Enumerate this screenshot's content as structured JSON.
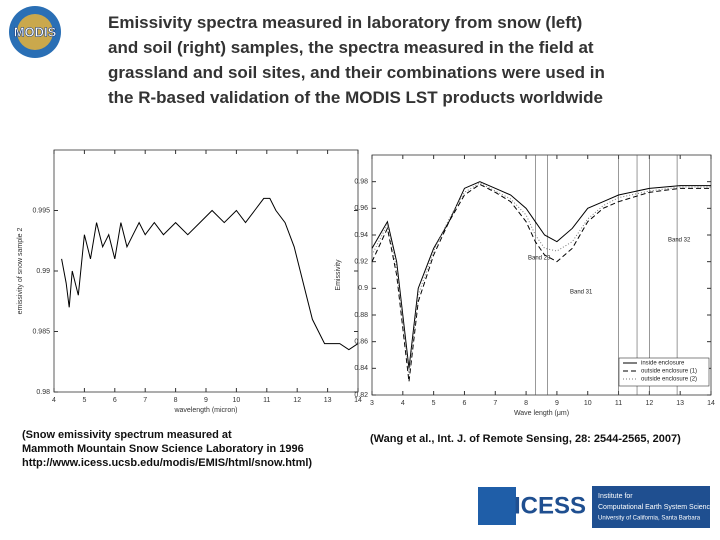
{
  "title_lines": [
    "Emissivity spectra measured in laboratory from snow (left)",
    "and soil (right) samples, the spectra measured in the field at",
    "grassland and soil sites, and their combinations were used in",
    "the R-based validation of the MODIS LST products worldwide"
  ],
  "captions": {
    "left": [
      "(Snow emissivity spectrum measured at",
      "Mammoth Mountain Snow Science Laboratory in 1996",
      "http://www.icess.ucsb.edu/modis/EMIS/html/snow.html)"
    ],
    "right": "(Wang et al., Int. J. of Remote Sensing, 28: 2544-2565, 2007)"
  },
  "logos": {
    "modis": "MODIS",
    "icess": "ICESS",
    "institute": [
      "Institute for",
      "Computational Earth System Science",
      "University of California, Santa Barbara"
    ]
  },
  "chart_data": [
    {
      "type": "line",
      "x_label": "wavelength (micron)",
      "y_label": "emissivity of snow sample 2",
      "x": [
        4.25,
        4.4,
        4.5,
        4.6,
        4.8,
        5.0,
        5.2,
        5.4,
        5.6,
        5.8,
        6.0,
        6.2,
        6.4,
        6.6,
        6.8,
        7.0,
        7.3,
        7.6,
        8.0,
        8.4,
        8.8,
        9.2,
        9.6,
        10.0,
        10.3,
        10.6,
        10.9,
        11.1,
        11.3,
        11.6,
        11.9,
        12.1,
        12.3,
        12.5,
        12.7,
        12.9,
        13.1,
        13.4,
        13.7,
        14.0
      ],
      "series": [
        {
          "name": null,
          "color": "#000000",
          "values": [
            0.991,
            0.989,
            0.987,
            0.99,
            0.988,
            0.993,
            0.991,
            0.994,
            0.992,
            0.993,
            0.991,
            0.994,
            0.992,
            0.993,
            0.994,
            0.993,
            0.994,
            0.993,
            0.994,
            0.993,
            0.994,
            0.995,
            0.994,
            0.995,
            0.994,
            0.995,
            0.996,
            0.996,
            0.995,
            0.994,
            0.992,
            0.99,
            0.988,
            0.986,
            0.985,
            0.984,
            0.984,
            0.984,
            0.9835,
            0.984
          ]
        }
      ],
      "xlim": [
        4,
        14
      ],
      "xticks": [
        4,
        5,
        6,
        7,
        8,
        9,
        10,
        11,
        12,
        13,
        14
      ],
      "ylim": [
        0.98,
        1.0
      ],
      "yticks": [
        0.98,
        0.985,
        0.99,
        0.995
      ]
    },
    {
      "type": "line",
      "x_label": "Wave length (μm)",
      "y_label": "Emissivity",
      "x": [
        3,
        3.5,
        3.8,
        4.0,
        4.2,
        4.5,
        5.0,
        5.5,
        6.0,
        6.5,
        7.0,
        7.5,
        8.0,
        8.3,
        8.6,
        9.0,
        9.5,
        10.0,
        10.5,
        11.0,
        12.0,
        13.0,
        14.0
      ],
      "series": [
        {
          "name": "inside   enclosure",
          "color": "#000000",
          "dash": "",
          "values": [
            0.93,
            0.95,
            0.92,
            0.88,
            0.84,
            0.9,
            0.93,
            0.95,
            0.975,
            0.98,
            0.975,
            0.97,
            0.96,
            0.95,
            0.94,
            0.935,
            0.945,
            0.96,
            0.965,
            0.97,
            0.975,
            0.977,
            0.977
          ]
        },
        {
          "name": "outside enclosure (1)",
          "color": "#000000",
          "dash": "5,3",
          "values": [
            0.92,
            0.945,
            0.91,
            0.87,
            0.83,
            0.89,
            0.925,
            0.95,
            0.97,
            0.978,
            0.972,
            0.965,
            0.95,
            0.935,
            0.925,
            0.92,
            0.93,
            0.95,
            0.96,
            0.965,
            0.972,
            0.975,
            0.975
          ]
        },
        {
          "name": "outside enclosure (2)",
          "color": "#777777",
          "dash": "1,2",
          "values": [
            0.925,
            0.948,
            0.915,
            0.875,
            0.835,
            0.895,
            0.928,
            0.952,
            0.972,
            0.979,
            0.973,
            0.967,
            0.955,
            0.94,
            0.93,
            0.928,
            0.935,
            0.952,
            0.962,
            0.968,
            0.973,
            0.976,
            0.976
          ]
        }
      ],
      "band_lines": [
        8.3,
        8.7,
        11.0,
        11.6,
        12.0,
        12.9
      ],
      "annotations": [
        "Band 29",
        "Band 31",
        "Band 32"
      ],
      "xlim": [
        3,
        14
      ],
      "xticks": [
        3,
        4,
        5,
        6,
        7,
        8,
        9,
        10,
        11,
        12,
        13,
        14
      ],
      "ylim": [
        0.82,
        1.0
      ],
      "yticks": [
        0.82,
        0.84,
        0.86,
        0.88,
        0.9,
        0.92,
        0.94,
        0.96,
        0.98
      ],
      "legend": "lower right"
    }
  ]
}
